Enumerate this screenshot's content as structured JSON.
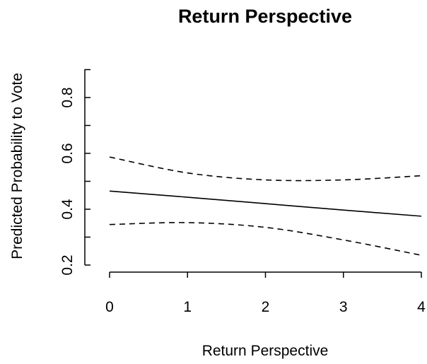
{
  "chart_data": {
    "type": "line",
    "title": "Return Perspective",
    "xlabel": "Return Perspective",
    "ylabel": "Predicted Probability to Vote",
    "xlim": [
      0,
      4
    ],
    "ylim": [
      0.2,
      0.9
    ],
    "x_ticks": [
      "0",
      "1",
      "2",
      "3",
      "4"
    ],
    "y_ticks": [
      "0.2",
      "0.4",
      "0.6",
      "0.8"
    ],
    "grid": false,
    "legend": "none",
    "x": [
      0,
      1,
      2,
      3,
      4
    ],
    "series": [
      {
        "style": "solid",
        "values": [
          0.465,
          0.443,
          0.42,
          0.397,
          0.375
        ]
      },
      {
        "style": "dashed",
        "values": [
          0.587,
          0.53,
          0.505,
          0.505,
          0.52
        ]
      },
      {
        "style": "dashed",
        "values": [
          0.345,
          0.352,
          0.335,
          0.29,
          0.235
        ]
      }
    ]
  }
}
